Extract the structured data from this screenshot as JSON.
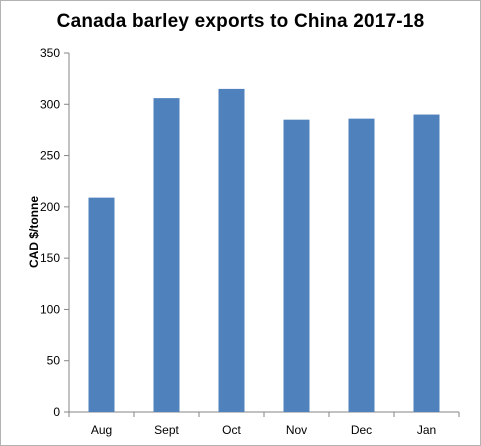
{
  "chart_data": {
    "type": "bar",
    "title": "Canada  barley exports to China 2017-18",
    "xlabel": "",
    "ylabel": "CAD $/tonne",
    "categories": [
      "Aug",
      "Sept",
      "Oct",
      "Nov",
      "Dec",
      "Jan"
    ],
    "values": [
      209,
      306,
      315,
      285,
      286,
      290
    ],
    "ylim": [
      0,
      350
    ],
    "yticks": [
      "0",
      "50",
      "100",
      "150",
      "200",
      "250",
      "300",
      "350"
    ],
    "grid": false,
    "legend": "none",
    "bar_color": "#4f81bd"
  }
}
